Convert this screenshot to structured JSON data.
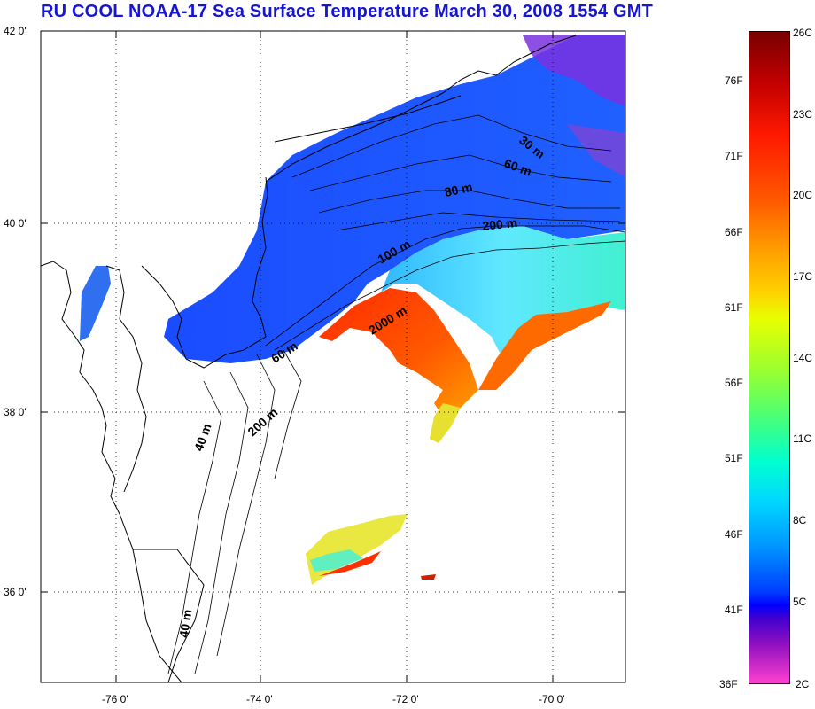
{
  "title": "RU COOL  NOAA-17 Sea Surface Temperature March 30, 2008 1554 GMT",
  "map": {
    "lat_labels": [
      "42 0'",
      "40 0'",
      "38 0'",
      "36 0'"
    ],
    "lon_labels": [
      "-76 0'",
      "-74 0'",
      "-72 0'",
      "-70 0'"
    ],
    "contours": [
      {
        "label": "30 m"
      },
      {
        "label": "60 m"
      },
      {
        "label": "80 m"
      },
      {
        "label": "200 m"
      },
      {
        "label": "100 m"
      },
      {
        "label": "2000 m"
      },
      {
        "label": "60 m"
      },
      {
        "label": "40 m"
      },
      {
        "label": "200 m"
      },
      {
        "label": "40 m"
      }
    ],
    "colors": {
      "land": "#ffffff",
      "coast": "#000000",
      "grid": "#000000",
      "title": "#1515d6"
    }
  },
  "colorbar": {
    "celsius": [
      "26C",
      "23C",
      "20C",
      "17C",
      "14C",
      "11C",
      "8C",
      "5C",
      "2C"
    ],
    "fahrenheit": [
      "76F",
      "71F",
      "66F",
      "61F",
      "56F",
      "51F",
      "46F",
      "41F",
      "36F"
    ]
  }
}
